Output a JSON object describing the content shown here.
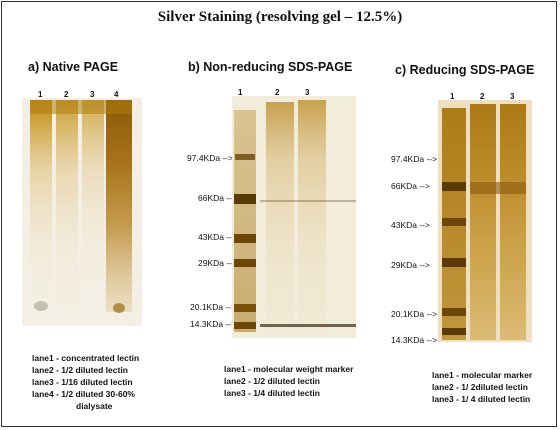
{
  "title": "Silver Staining (resolving gel – 12.5%)",
  "panels": [
    {
      "title": "a) Native PAGE",
      "lanes": [
        "1",
        "2",
        "3",
        "4"
      ],
      "legend": [
        "lane1 - concentrated lectin",
        "lane2 - 1/2 diluted lectin",
        "lane3 - 1/16 diluted lectin",
        "lane4 - 1/2 diluted 30-60%",
        "dialysate"
      ]
    },
    {
      "title": "b) Non-reducing SDS-PAGE",
      "lanes": [
        "1",
        "2",
        "3"
      ],
      "markers": [
        "97.4KDa -->",
        "66KDa -->",
        "43KDa -->",
        "29KDa -->",
        "20.1KDa -->",
        "14.3KDa -->"
      ],
      "legend": [
        "lane1 - molecular weight marker",
        "lane2 - 1/2 diluted lectin",
        "lane3 - 1/4 diluted lectin"
      ]
    },
    {
      "title": "c) Reducing SDS-PAGE",
      "lanes": [
        "1",
        "2",
        "3"
      ],
      "markers": [
        "97.4KDa -->",
        "66KDa -->",
        "43KDa -->",
        "29KDa -->",
        "20.1KDa -->",
        "14.3KDa -->"
      ],
      "legend": [
        "lane1 - molecular marker",
        "lane2 - 1/ 2diluted lectin",
        "lane3 - 1/ 4  diluted lectin"
      ]
    }
  ]
}
